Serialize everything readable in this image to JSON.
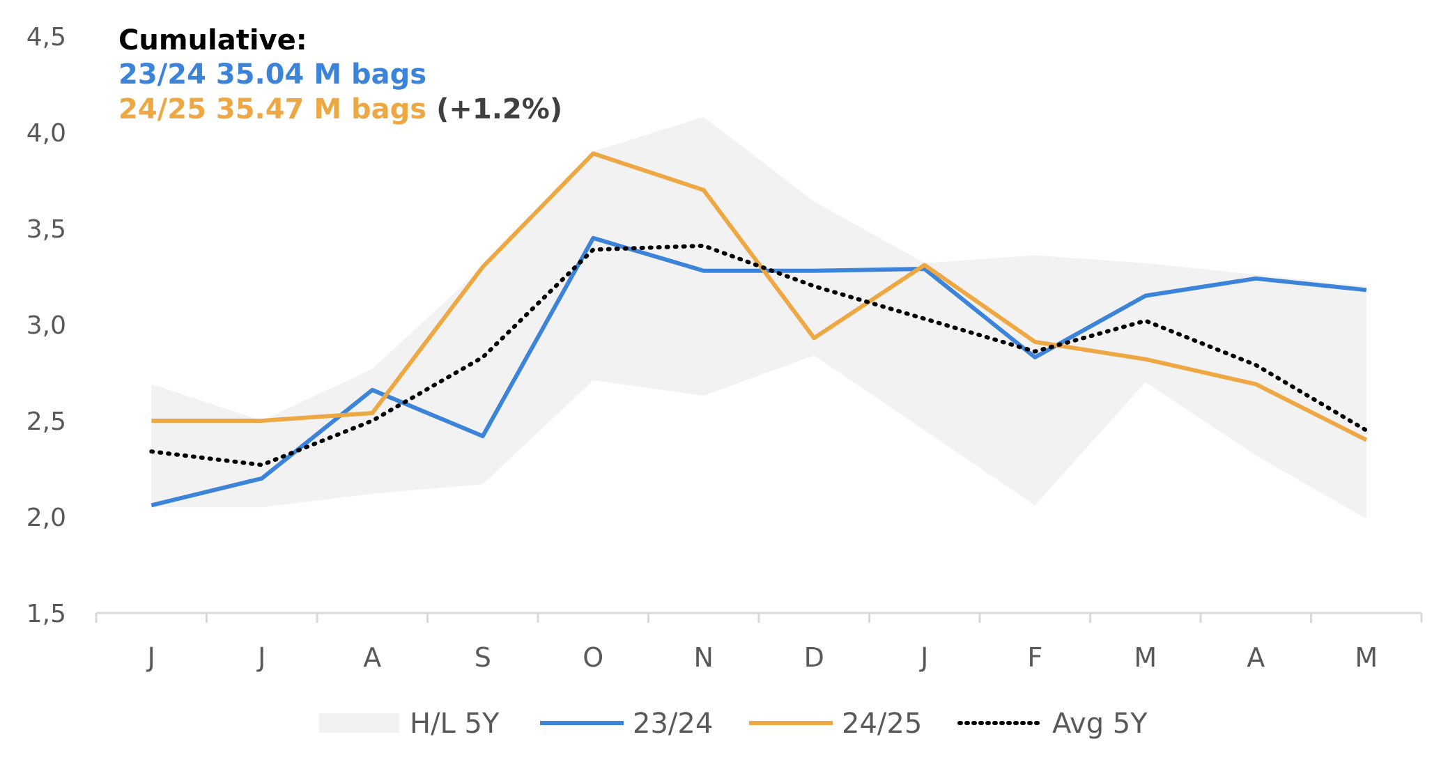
{
  "chart_data": {
    "type": "line",
    "categories": [
      "J",
      "J",
      "A",
      "S",
      "O",
      "N",
      "D",
      "J",
      "F",
      "M",
      "A",
      "M"
    ],
    "ylim": [
      1.5,
      4.5
    ],
    "yticks": [
      "1,5",
      "2,0",
      "2,5",
      "3,0",
      "3,5",
      "4,0",
      "4,5"
    ],
    "ytick_values": [
      1.5,
      2.0,
      2.5,
      3.0,
      3.5,
      4.0,
      4.5
    ],
    "grid": false,
    "legend_position": "bottom",
    "band": {
      "name": "H/L 5Y",
      "color": "#f2f2f2",
      "high": [
        2.69,
        2.5,
        2.77,
        3.3,
        3.9,
        4.08,
        3.64,
        3.32,
        3.36,
        3.32,
        3.26,
        3.2
      ],
      "low": [
        2.05,
        2.05,
        2.12,
        2.17,
        2.71,
        2.63,
        2.84,
        2.45,
        2.06,
        2.7,
        2.32,
        1.99
      ]
    },
    "series": [
      {
        "name": "23/24",
        "color": "#3b84d9",
        "style": "solid",
        "values": [
          2.06,
          2.2,
          2.66,
          2.42,
          3.45,
          3.28,
          3.28,
          3.29,
          2.83,
          3.15,
          3.24,
          3.18
        ]
      },
      {
        "name": "24/25",
        "color": "#eda843",
        "style": "solid",
        "values": [
          2.5,
          2.5,
          2.54,
          3.3,
          3.89,
          3.7,
          2.93,
          3.31,
          2.91,
          2.82,
          2.69,
          2.4
        ]
      },
      {
        "name": "Avg 5Y",
        "color": "#000000",
        "style": "dotted",
        "values": [
          2.34,
          2.27,
          2.5,
          2.83,
          3.39,
          3.41,
          3.2,
          3.03,
          2.86,
          3.02,
          2.79,
          2.45
        ]
      }
    ],
    "annotation": {
      "heading": "Cumulative:",
      "line1": "23/24 35.04 M bags",
      "line1_color": "#3b84d9",
      "line2": "24/25 35.47 M bags",
      "line2_color": "#eda843",
      "line2_suffix": "(+1.2%)"
    }
  }
}
